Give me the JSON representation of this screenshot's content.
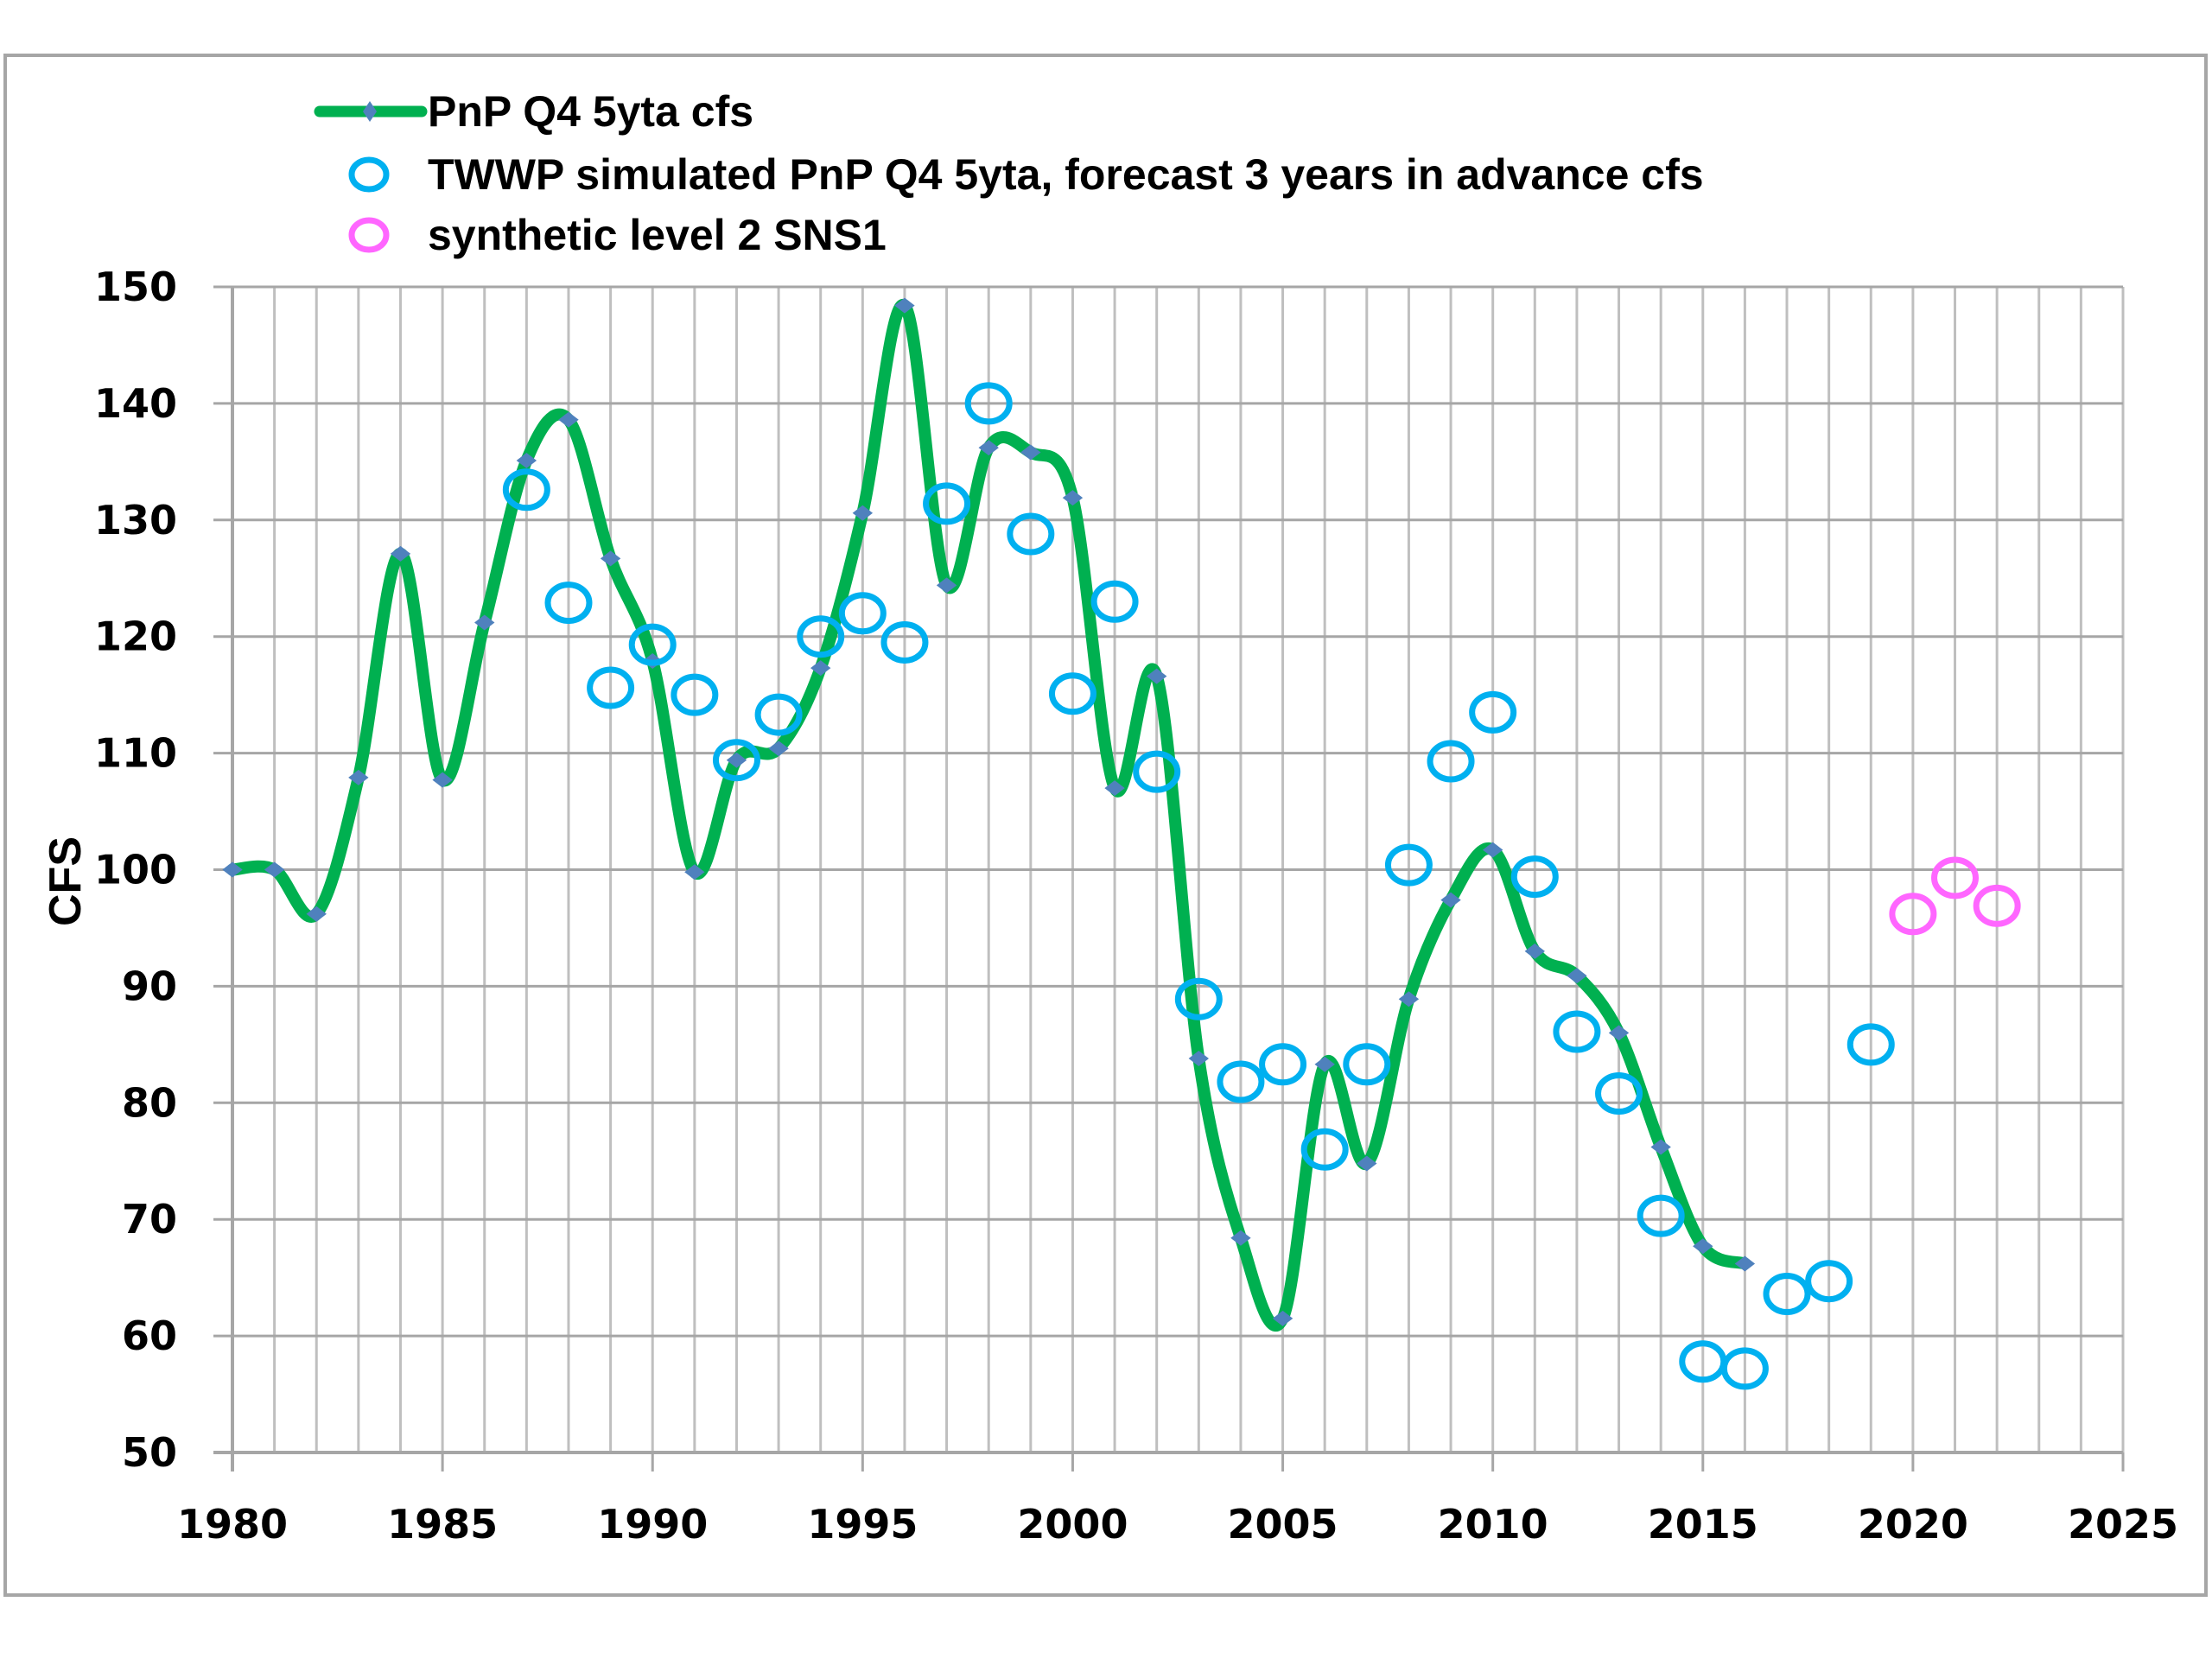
{
  "chart_data": {
    "type": "line",
    "title": "",
    "xlabel": "",
    "ylabel": "CFS",
    "xlim": [
      1980,
      2025
    ],
    "ylim": [
      50,
      150
    ],
    "xticks": [
      1980,
      1985,
      1990,
      1995,
      2000,
      2005,
      2010,
      2015,
      2020,
      2025
    ],
    "yticks": [
      50,
      60,
      70,
      80,
      90,
      100,
      110,
      120,
      130,
      140,
      150
    ],
    "x_minor_grid_step": 1,
    "grid": true,
    "legend_position": "top-left",
    "series": [
      {
        "name": "PnP Q4 5yta cfs",
        "style": "smooth-line-with-diamond-markers",
        "line_color": "#00b050",
        "marker_color": "#4f81bd",
        "x": [
          1980,
          1981,
          1982,
          1983,
          1984,
          1985,
          1986,
          1987,
          1988,
          1989,
          1990,
          1991,
          1992,
          1993,
          1994,
          1995,
          1996,
          1997,
          1998,
          1999,
          2000,
          2001,
          2002,
          2003,
          2004,
          2005,
          2006,
          2007,
          2008,
          2009,
          2010,
          2011,
          2012,
          2013,
          2014,
          2015,
          2016
        ],
        "values": [
          100,
          100,
          96.2,
          107.9,
          127.1,
          107.7,
          121.2,
          135.1,
          138.6,
          126.7,
          117.9,
          99.8,
          109.4,
          110.4,
          117.3,
          130.6,
          148.4,
          124.4,
          136.2,
          135.8,
          131.9,
          107.0,
          116.6,
          83.8,
          68.4,
          61.5,
          83.3,
          74.8,
          88.9,
          97.4,
          101.7,
          93.0,
          90.9,
          86.0,
          76.2,
          67.7,
          66.2
        ]
      },
      {
        "name": "TWWP simulated PnP Q4 5yta, forecast 3 years in advance cfs",
        "style": "open-circle-markers",
        "marker_color": "#00b0f0",
        "x": [
          1987,
          1988,
          1989,
          1990,
          1991,
          1992,
          1993,
          1994,
          1995,
          1996,
          1997,
          1998,
          1999,
          2000,
          2001,
          2002,
          2003,
          2004,
          2005,
          2006,
          2007,
          2008,
          2009,
          2010,
          2011,
          2012,
          2013,
          2014,
          2015,
          2016,
          2017,
          2018,
          2019
        ],
        "values": [
          132.6,
          122.9,
          115.6,
          119.3,
          115.0,
          109.4,
          113.3,
          120.0,
          122.0,
          119.5,
          131.4,
          140.0,
          128.8,
          115.1,
          123.0,
          108.4,
          88.9,
          81.8,
          83.3,
          76.0,
          83.3,
          100.4,
          109.3,
          113.5,
          99.4,
          86.1,
          80.8,
          70.3,
          57.8,
          57.2,
          63.6,
          64.7,
          85.0
        ]
      },
      {
        "name": "synthetic level 2 SNS1",
        "style": "open-circle-markers",
        "marker_color": "#ff66ff",
        "x": [
          2020,
          2021,
          2022
        ],
        "values": [
          96.2,
          99.3,
          96.9
        ]
      }
    ],
    "colors": {
      "grid": "#bfbfbf",
      "axis": "#a6a6a6",
      "frame": "#a6a6a6"
    }
  }
}
